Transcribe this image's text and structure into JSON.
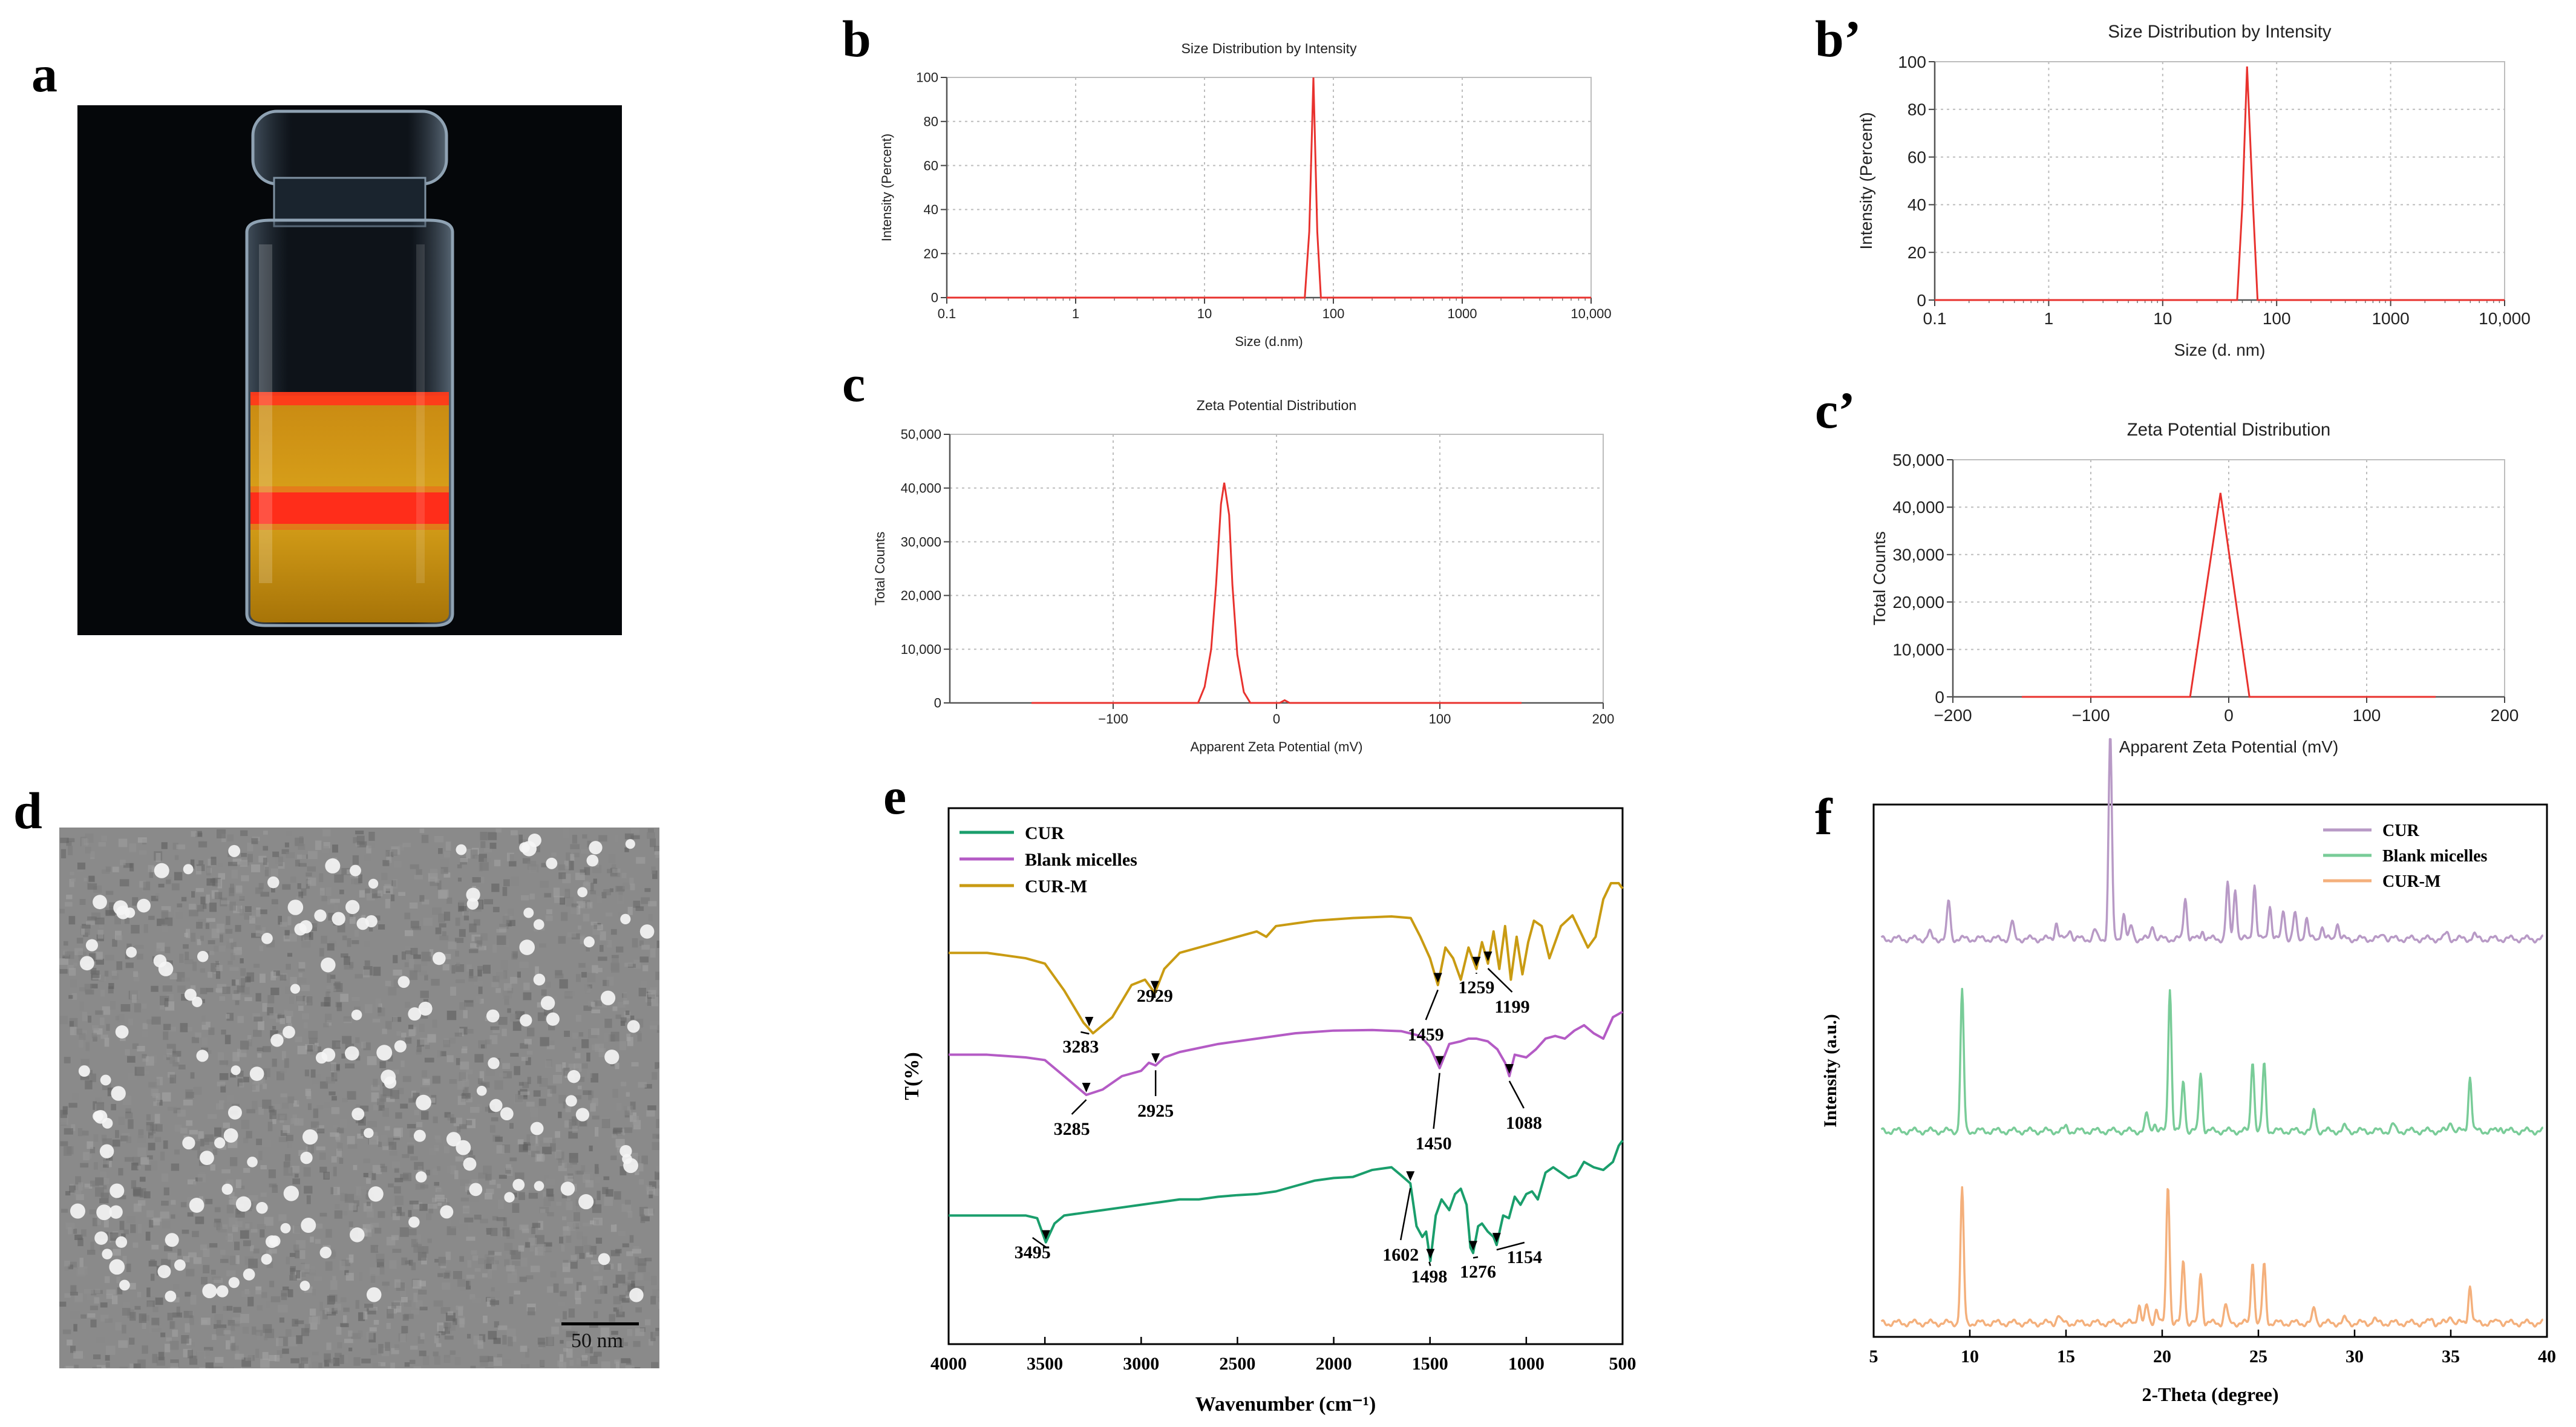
{
  "panels": {
    "a": {
      "label": "a"
    },
    "b": {
      "label": "b"
    },
    "b2": {
      "label": "b’"
    },
    "c": {
      "label": "c"
    },
    "c2": {
      "label": "c’"
    },
    "d": {
      "label": "d",
      "scale_bar": "50 nm"
    },
    "e": {
      "label": "e"
    },
    "f": {
      "label": "f"
    }
  },
  "colors": {
    "dls_line": "#e8322e",
    "cur": "#1a9e6c",
    "blank": "#b45bc5",
    "curm": "#c99b12",
    "xrd_cur": "#b89ac6",
    "xrd_blank": "#79cc98",
    "xrd_curm": "#f4b07c",
    "grid": "#9a9a9a"
  },
  "chart_data": [
    {
      "id": "b",
      "type": "line",
      "title": "Size Distribution by Intensity",
      "xlabel": "Size (d.nm)",
      "ylabel": "Intensity (Percent)",
      "xscale": "log",
      "xlim": [
        0.1,
        10000
      ],
      "ylim": [
        0,
        100
      ],
      "xticks": [
        0.1,
        1,
        10,
        100,
        1000,
        10000
      ],
      "xtick_labels": [
        "0.1",
        "1",
        "10",
        "100",
        "1000",
        "10,000"
      ],
      "yticks": [
        0,
        20,
        40,
        60,
        80,
        100
      ],
      "ytick_labels": [
        "0",
        "20",
        "40",
        "60",
        "80",
        "100"
      ],
      "x": [
        0.1,
        50,
        60,
        65,
        70,
        75,
        80,
        10000
      ],
      "y": [
        0,
        0,
        0,
        30,
        100,
        30,
        0,
        0
      ]
    },
    {
      "id": "b2",
      "type": "line",
      "title": "Size Distribution by Intensity",
      "xlabel": "Size (d. nm)",
      "ylabel": "Intensity (Percent)",
      "xscale": "log",
      "xlim": [
        0.1,
        10000
      ],
      "ylim": [
        0,
        100
      ],
      "xticks": [
        0.1,
        1,
        10,
        100,
        1000,
        10000
      ],
      "xtick_labels": [
        "0.1",
        "1",
        "10",
        "100",
        "1000",
        "10,000"
      ],
      "yticks": [
        0,
        20,
        40,
        60,
        80,
        100
      ],
      "ytick_labels": [
        "0",
        "20",
        "40",
        "60",
        "80",
        "100"
      ],
      "x": [
        0.1,
        40,
        45,
        50,
        55,
        62,
        68,
        10000
      ],
      "y": [
        0,
        0,
        0,
        40,
        98,
        40,
        0,
        0
      ]
    },
    {
      "id": "c",
      "type": "line",
      "title": "Zeta Potential Distribution",
      "xlabel": "Apparent Zeta Potential (mV)",
      "ylabel": "Total Counts",
      "xlim": [
        -200,
        200
      ],
      "ylim": [
        0,
        50000
      ],
      "xticks": [
        -100,
        0,
        100,
        200
      ],
      "xtick_labels": [
        "−100",
        "0",
        "100",
        "200"
      ],
      "yticks": [
        0,
        10000,
        20000,
        30000,
        40000,
        50000
      ],
      "ytick_labels": [
        "0",
        "10,000",
        "20,000",
        "30,000",
        "40,000",
        "50,000"
      ],
      "x": [
        -150,
        -48,
        -44,
        -40,
        -37,
        -34,
        -32,
        -29,
        -27,
        -24,
        -20,
        -16,
        2,
        5,
        8,
        150
      ],
      "y": [
        0,
        0,
        3000,
        10000,
        22000,
        37000,
        41000,
        35000,
        22000,
        9000,
        2000,
        0,
        0,
        500,
        0,
        0
      ]
    },
    {
      "id": "c2",
      "type": "line",
      "title": "Zeta Potential Distribution",
      "xlabel": "Apparent Zeta Potential (mV)",
      "ylabel": "Total Counts",
      "xlim": [
        -200,
        200
      ],
      "ylim": [
        0,
        50000
      ],
      "xticks": [
        -200,
        -100,
        0,
        100,
        200
      ],
      "xtick_labels": [
        "−200",
        "−100",
        "0",
        "100",
        "200"
      ],
      "yticks": [
        0,
        10000,
        20000,
        30000,
        40000,
        50000
      ],
      "ytick_labels": [
        "0",
        "10,000",
        "20,000",
        "30,000",
        "40,000",
        "50,000"
      ],
      "x": [
        -150,
        -28,
        -6,
        15,
        150
      ],
      "y": [
        0,
        0,
        43000,
        0,
        0
      ]
    },
    {
      "id": "e",
      "type": "line",
      "title": "",
      "xlabel": "Wavenumber (cm⁻¹)",
      "ylabel": "T(%)",
      "xlim": [
        4000,
        500
      ],
      "ylim": [
        0,
        100
      ],
      "xticks": [
        4000,
        3500,
        3000,
        2500,
        2000,
        1500,
        1000,
        500
      ],
      "xtick_labels": [
        "4000",
        "3500",
        "3000",
        "2500",
        "2000",
        "1500",
        "1000",
        "500"
      ],
      "legend": [
        "CUR",
        "Blank micelles",
        "CUR-M"
      ],
      "series": [
        {
          "name": "CUR-M",
          "x": [
            4000,
            3800,
            3600,
            3500,
            3400,
            3300,
            3250,
            3150,
            3050,
            2980,
            2929,
            2880,
            2800,
            2600,
            2400,
            2350,
            2300,
            2100,
            1900,
            1700,
            1600,
            1550,
            1500,
            1459,
            1420,
            1380,
            1340,
            1300,
            1259,
            1230,
            1199,
            1170,
            1140,
            1110,
            1080,
            1050,
            1020,
            990,
            960,
            920,
            880,
            820,
            760,
            720,
            680,
            640,
            600,
            560,
            520,
            500
          ],
          "y": [
            73,
            73,
            72,
            71,
            66,
            60,
            58,
            61,
            67,
            68,
            65.5,
            70,
            73,
            75,
            77,
            76,
            78,
            79,
            79.5,
            79.8,
            79.5,
            76,
            72,
            67,
            74,
            72,
            68,
            74,
            70,
            75,
            71,
            77,
            70,
            78,
            68,
            76,
            69,
            75,
            79,
            78,
            72,
            78,
            80,
            77,
            74,
            76,
            83,
            86,
            86,
            85
          ]
        },
        {
          "name": "Blank micelles",
          "x": [
            4000,
            3800,
            3600,
            3500,
            3400,
            3285,
            3200,
            3100,
            3000,
            2960,
            2925,
            2880,
            2800,
            2600,
            2400,
            2200,
            2000,
            1800,
            1650,
            1550,
            1500,
            1450,
            1400,
            1340,
            1300,
            1260,
            1200,
            1150,
            1110,
            1088,
            1060,
            1000,
            950,
            900,
            850,
            800,
            750,
            700,
            650,
            600,
            550,
            500
          ],
          "y": [
            54,
            54,
            53.5,
            53,
            50,
            46.5,
            47.5,
            50,
            51,
            52.5,
            52,
            53.5,
            54.5,
            56,
            57,
            58,
            58.5,
            58.6,
            58.4,
            57.5,
            55.5,
            51.5,
            56,
            56.5,
            57,
            57,
            56.5,
            55,
            52.5,
            50,
            54,
            53.5,
            55,
            57,
            57.5,
            57,
            58.5,
            59.5,
            58,
            57,
            61,
            62
          ]
        },
        {
          "name": "CUR",
          "x": [
            4000,
            3800,
            3600,
            3540,
            3495,
            3450,
            3400,
            3300,
            3200,
            3100,
            3000,
            2900,
            2800,
            2700,
            2600,
            2500,
            2400,
            2300,
            2200,
            2100,
            2000,
            1900,
            1800,
            1700,
            1650,
            1602,
            1570,
            1540,
            1520,
            1498,
            1470,
            1440,
            1400,
            1370,
            1340,
            1310,
            1290,
            1276,
            1250,
            1230,
            1200,
            1170,
            1154,
            1120,
            1090,
            1060,
            1030,
            1000,
            970,
            940,
            900,
            860,
            820,
            780,
            740,
            700,
            650,
            600,
            550,
            520,
            500
          ],
          "y": [
            24,
            24,
            24,
            23.5,
            19,
            22.5,
            24,
            24.5,
            25,
            25.5,
            26,
            26.5,
            27,
            27,
            27.5,
            27.8,
            28,
            28.5,
            29.5,
            30.5,
            31,
            31.2,
            32.5,
            33,
            31.5,
            30,
            22,
            20,
            21,
            15.5,
            24,
            27,
            25,
            28,
            29,
            26,
            18,
            17,
            22,
            22.5,
            21,
            20,
            18.5,
            24,
            23.5,
            27.5,
            26,
            28,
            28.5,
            27,
            32,
            33,
            32,
            31,
            31.5,
            34,
            33,
            32.5,
            34,
            37,
            38
          ]
        }
      ],
      "annotations": [
        "3283",
        "2929",
        "1459",
        "1259",
        "1199",
        "3285",
        "2925",
        "1450",
        "1088",
        "3495",
        "1602",
        "1498",
        "1276",
        "1154"
      ]
    },
    {
      "id": "f",
      "type": "line",
      "title": "",
      "xlabel": "2-Theta (degree)",
      "ylabel": "Intensity (a.u.)",
      "xlim": [
        5,
        40
      ],
      "xticks": [
        5,
        10,
        15,
        20,
        25,
        30,
        35,
        40
      ],
      "xtick_labels": [
        "5",
        "10",
        "15",
        "20",
        "25",
        "30",
        "35",
        "40"
      ],
      "legend": [
        "CUR",
        "Blank micelles",
        "CUR-M"
      ],
      "series": [
        {
          "name": "CUR",
          "baseline": 72,
          "peaks": [
            [
              7.9,
              3
            ],
            [
              8.9,
              18
            ],
            [
              12.2,
              8
            ],
            [
              14.5,
              8
            ],
            [
              15.2,
              5
            ],
            [
              16.5,
              4
            ],
            [
              17.3,
              97
            ],
            [
              18.0,
              12
            ],
            [
              18.4,
              6
            ],
            [
              19.5,
              7
            ],
            [
              21.2,
              20
            ],
            [
              22.1,
              4
            ],
            [
              23.4,
              26
            ],
            [
              23.8,
              24
            ],
            [
              24.8,
              26
            ],
            [
              25.6,
              16
            ],
            [
              26.3,
              14
            ],
            [
              26.9,
              12
            ],
            [
              27.5,
              10
            ],
            [
              28.3,
              6
            ],
            [
              29.1,
              8
            ],
            [
              31.5,
              3
            ],
            [
              34.8,
              3
            ],
            [
              36.2,
              2
            ]
          ]
        },
        {
          "name": "Blank micelles",
          "baseline": 38,
          "peaks": [
            [
              9.6,
              66
            ],
            [
              15.0,
              2
            ],
            [
              19.2,
              8
            ],
            [
              19.6,
              4
            ],
            [
              20.4,
              68
            ],
            [
              21.1,
              24
            ],
            [
              22.0,
              28
            ],
            [
              24.7,
              34
            ],
            [
              25.3,
              32
            ],
            [
              27.9,
              10
            ],
            [
              29.5,
              2
            ],
            [
              32.0,
              3
            ],
            [
              35.0,
              5
            ],
            [
              36.0,
              26
            ],
            [
              37.6,
              2
            ]
          ]
        },
        {
          "name": "CUR-M",
          "baseline": 5,
          "peaks": [
            [
              9.6,
              63
            ],
            [
              14.6,
              4
            ],
            [
              18.8,
              9
            ],
            [
              19.2,
              8
            ],
            [
              19.7,
              7
            ],
            [
              20.3,
              66
            ],
            [
              21.1,
              30
            ],
            [
              22.0,
              24
            ],
            [
              23.3,
              9
            ],
            [
              24.7,
              30
            ],
            [
              25.3,
              28
            ],
            [
              27.9,
              7
            ],
            [
              29.5,
              2
            ],
            [
              31.0,
              2
            ],
            [
              34.0,
              2
            ],
            [
              35.0,
              4
            ],
            [
              36.0,
              18
            ],
            [
              37.5,
              2
            ]
          ]
        }
      ]
    }
  ]
}
